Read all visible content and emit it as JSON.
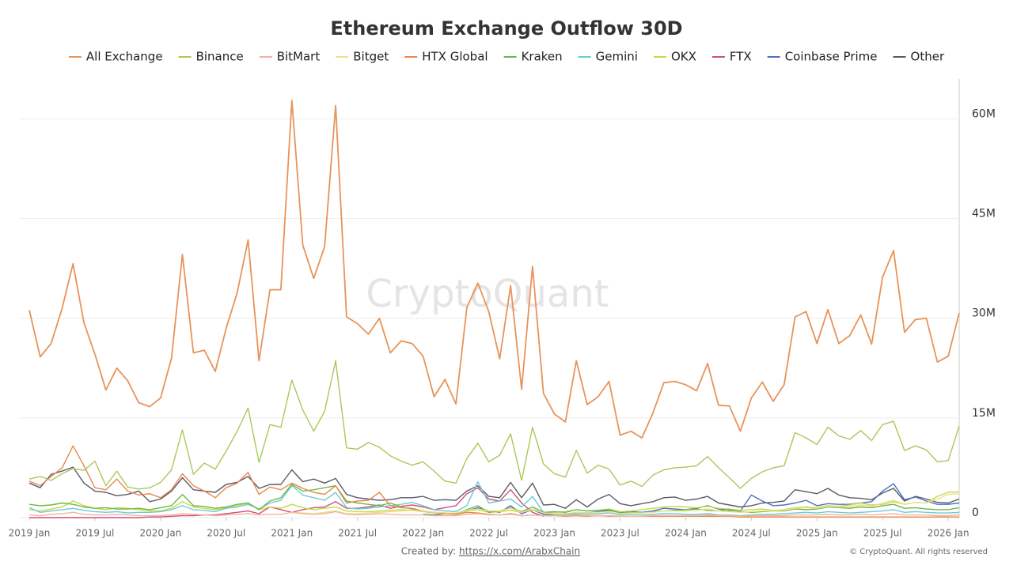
{
  "chart_data": {
    "type": "line",
    "title": "Ethereum Exchange Outflow 30D",
    "watermark": "CryptoQuant",
    "credit_label": "Created by:",
    "credit_link": "https://x.com/ArabxChain",
    "copyright": "© CryptoQuant. All rights reserved",
    "categories": [
      "2019 Jan",
      null,
      null,
      null,
      null,
      null,
      "2019 Jul",
      null,
      null,
      null,
      null,
      null,
      "2020 Jan",
      null,
      null,
      null,
      null,
      null,
      "2020 Jul",
      null,
      null,
      null,
      null,
      null,
      "2021 Jan",
      null,
      null,
      null,
      null,
      null,
      "2021 Jul",
      null,
      null,
      null,
      null,
      null,
      "2022 Jan",
      null,
      null,
      null,
      null,
      null,
      "2022 Jul",
      null,
      null,
      null,
      null,
      null,
      "2023 Jan",
      null,
      null,
      null,
      null,
      null,
      "2023 Jul",
      null,
      null,
      null,
      null,
      null,
      "2024 Jan",
      null,
      null,
      null,
      null,
      null,
      "2024 Jul",
      null,
      null,
      null,
      null,
      null,
      "2025 Jan",
      null,
      null,
      null,
      null,
      null,
      "2025 Jul",
      null,
      null,
      null,
      null,
      null,
      "2026 Jan",
      null
    ],
    "ylim": [
      0,
      66
    ],
    "yticks": [
      0,
      {
        "value": 15,
        "label": "15M"
      },
      {
        "value": 30,
        "label": "30M"
      },
      {
        "value": 45,
        "label": "45M"
      },
      {
        "value": 60,
        "label": "60M"
      }
    ],
    "grid": true,
    "legend": "top",
    "series": [
      {
        "name": "All Exchange",
        "color": "#e8935a",
        "values": [
          31.2,
          24.2,
          26.2,
          31.5,
          38.2,
          29.3,
          24.6,
          19.2,
          22.5,
          20.6,
          17.3,
          16.7,
          18.0,
          24.0,
          39.6,
          24.8,
          25.2,
          22.0,
          28.5,
          33.8,
          41.8,
          23.6,
          34.3,
          34.3,
          62.8,
          41.0,
          36.0,
          40.8,
          62.0,
          30.2,
          29.2,
          27.6,
          30.0,
          24.8,
          26.6,
          26.2,
          24.3,
          18.2,
          20.8,
          17.1,
          31.6,
          35.3,
          31.0,
          23.9,
          34.9,
          19.3,
          37.8,
          18.7,
          15.6,
          14.4,
          23.6,
          17.0,
          18.2,
          20.5,
          12.4,
          13.0,
          12.0,
          15.7,
          20.3,
          20.5,
          20.0,
          19.1,
          23.2,
          16.9,
          16.8,
          13.0,
          18.0,
          20.4,
          17.5,
          20.0,
          30.2,
          31.0,
          26.2,
          31.3,
          26.2,
          27.4,
          30.5,
          26.1,
          36.2,
          40.2,
          27.9,
          29.8,
          30.0,
          23.4,
          24.3,
          30.8
        ]
      },
      {
        "name": "Binance",
        "color": "#a8c95a",
        "values": [
          5.8,
          6.2,
          5.6,
          6.6,
          7.4,
          7.1,
          8.5,
          4.8,
          7.0,
          4.6,
          4.3,
          4.5,
          5.3,
          7.2,
          13.2,
          6.5,
          8.2,
          7.3,
          10.0,
          13.0,
          16.5,
          8.3,
          14.0,
          13.6,
          20.7,
          16.2,
          13.0,
          16.0,
          23.6,
          10.5,
          10.3,
          11.3,
          10.6,
          9.3,
          8.5,
          7.9,
          8.4,
          7.0,
          5.5,
          5.2,
          8.9,
          11.2,
          8.4,
          9.4,
          12.6,
          5.6,
          13.6,
          8.1,
          6.6,
          6.1,
          10.1,
          6.7,
          7.9,
          7.3,
          4.9,
          5.5,
          4.7,
          6.4,
          7.2,
          7.5,
          7.6,
          7.8,
          9.2,
          7.5,
          6.0,
          4.4,
          5.9,
          6.9,
          7.5,
          7.8,
          12.8,
          12.0,
          11.0,
          13.6,
          12.3,
          11.8,
          13.1,
          11.6,
          14.0,
          14.5,
          10.1,
          10.8,
          10.2,
          8.4,
          8.6,
          13.8
        ]
      },
      {
        "name": "BitMart",
        "color": "#f4b49a",
        "values": [
          0.4,
          0.3,
          0.5,
          0.6,
          0.8,
          0.5,
          0.4,
          0.4,
          0.5,
          0.4,
          0.3,
          0.3,
          0.3,
          0.4,
          0.6,
          0.5,
          0.4,
          0.3,
          0.4,
          0.5,
          0.6,
          0.4,
          0.5,
          0.5,
          0.8,
          0.6,
          0.5,
          0.6,
          0.9,
          0.5,
          0.4,
          0.5,
          0.6,
          0.5,
          0.4,
          0.4,
          0.4,
          0.3,
          0.3,
          0.3,
          0.5,
          0.6,
          0.4,
          0.4,
          0.5,
          0.3,
          0.4,
          0.3,
          0.3,
          0.3,
          0.4,
          0.3,
          0.3,
          0.3,
          0.2,
          0.2,
          0.2,
          0.3,
          0.3,
          0.3,
          0.3,
          0.3,
          0.4,
          0.3,
          0.3,
          0.2,
          0.3,
          0.3,
          0.3,
          0.3,
          0.4,
          0.4,
          0.4,
          0.5,
          0.4,
          0.4,
          0.5,
          0.4,
          0.5,
          0.6,
          0.4,
          0.4,
          0.4,
          0.3,
          0.3,
          0.4
        ]
      },
      {
        "name": "Bitget",
        "color": "#ecdf8c",
        "values": [
          null,
          null,
          null,
          null,
          null,
          null,
          null,
          null,
          null,
          null,
          null,
          null,
          null,
          null,
          null,
          null,
          null,
          null,
          null,
          null,
          null,
          null,
          null,
          null,
          0.8,
          0.7,
          0.6,
          0.8,
          1.0,
          0.6,
          0.6,
          0.7,
          0.8,
          0.9,
          1.0,
          1.1,
          1.0,
          0.8,
          0.7,
          0.7,
          1.1,
          1.3,
          1.0,
          1.0,
          1.4,
          0.8,
          1.3,
          0.7,
          0.6,
          0.6,
          0.8,
          0.7,
          0.8,
          0.9,
          0.6,
          0.7,
          0.7,
          0.8,
          1.0,
          1.0,
          1.0,
          1.1,
          1.3,
          1.0,
          0.9,
          0.8,
          0.9,
          1.0,
          1.0,
          1.1,
          1.4,
          1.5,
          1.4,
          1.7,
          1.6,
          1.6,
          1.9,
          1.7,
          2.2,
          2.6,
          2.0,
          2.3,
          2.2,
          2.8,
          3.5,
          3.6
        ]
      },
      {
        "name": "HTX Global",
        "color": "#e8884a",
        "values": [
          5.5,
          4.8,
          6.2,
          7.5,
          10.8,
          7.8,
          4.5,
          4.2,
          5.8,
          4.0,
          3.4,
          3.6,
          3.0,
          4.2,
          6.6,
          4.8,
          4.0,
          3.0,
          4.5,
          5.2,
          6.8,
          3.5,
          4.6,
          4.2,
          5.2,
          4.4,
          3.8,
          3.5,
          4.8,
          2.2,
          2.5,
          2.6,
          3.8,
          1.8,
          1.5,
          1.4,
          1.0,
          0.8,
          0.6,
          0.5,
          0.8,
          0.7,
          0.5,
          0.4,
          0.6,
          0.3,
          0.4,
          0.3,
          0.3,
          0.2,
          0.3,
          0.2,
          0.3,
          0.2,
          0.2,
          0.2,
          0.2,
          0.2,
          0.2,
          0.2,
          0.2,
          0.2,
          0.2,
          0.2,
          0.2,
          0.1,
          0.1,
          0.1,
          0.1,
          0.1,
          0.1,
          0.1,
          0.1,
          0.1,
          0.1,
          0.1,
          0.1,
          0.1,
          0.1,
          0.1,
          0.1,
          0.1,
          0.1,
          0.1,
          0.1,
          0.1
        ]
      },
      {
        "name": "Kraken",
        "color": "#6cb84a",
        "values": [
          2.0,
          1.8,
          1.9,
          2.2,
          2.0,
          1.6,
          1.4,
          1.5,
          1.3,
          1.3,
          1.4,
          1.2,
          1.5,
          1.8,
          3.5,
          1.8,
          1.7,
          1.4,
          1.6,
          2.0,
          2.2,
          1.2,
          2.5,
          3.0,
          5.0,
          4.0,
          4.2,
          4.5,
          4.8,
          2.5,
          2.2,
          2.0,
          1.8,
          2.2,
          1.6,
          1.3,
          1.0,
          0.8,
          0.7,
          0.6,
          1.2,
          1.8,
          0.8,
          1.0,
          1.5,
          0.9,
          1.6,
          0.8,
          0.9,
          0.8,
          1.2,
          1.0,
          1.1,
          1.2,
          0.7,
          0.8,
          0.7,
          0.9,
          1.0,
          1.1,
          1.2,
          1.3,
          1.1,
          1.0,
          1.2,
          0.9,
          0.8,
          0.9,
          1.0,
          1.0,
          1.3,
          1.2,
          1.3,
          1.6,
          1.5,
          1.4,
          1.6,
          1.5,
          1.8,
          2.0,
          1.4,
          1.5,
          1.3,
          1.2,
          1.2,
          1.5
        ]
      },
      {
        "name": "Gemini",
        "color": "#6ccbd6",
        "values": [
          1.5,
          0.8,
          1.0,
          1.2,
          1.4,
          1.1,
          0.9,
          0.8,
          0.9,
          0.7,
          0.8,
          0.8,
          0.9,
          1.2,
          1.8,
          1.2,
          1.1,
          0.9,
          1.4,
          1.6,
          2.0,
          1.3,
          2.2,
          2.6,
          4.8,
          3.4,
          3.0,
          2.6,
          3.8,
          1.5,
          1.3,
          1.4,
          1.6,
          1.8,
          2.0,
          2.3,
          1.8,
          1.2,
          1.0,
          0.9,
          1.8,
          5.4,
          2.2,
          2.5,
          2.8,
          1.6,
          3.2,
          0.8,
          0.5,
          0.4,
          0.6,
          0.5,
          0.6,
          0.7,
          0.4,
          0.5,
          0.4,
          0.5,
          0.6,
          0.6,
          0.5,
          0.5,
          0.6,
          0.4,
          0.4,
          0.3,
          0.4,
          0.5,
          0.5,
          0.6,
          0.7,
          0.8,
          0.7,
          0.9,
          0.8,
          0.7,
          0.8,
          0.9,
          1.0,
          1.2,
          0.8,
          0.9,
          0.8,
          0.7,
          0.7,
          0.8
        ]
      },
      {
        "name": "OKX",
        "color": "#c8d84a",
        "values": [
          1.2,
          1.0,
          1.3,
          1.6,
          2.5,
          1.8,
          1.4,
          1.2,
          1.5,
          1.4,
          1.2,
          1.0,
          1.0,
          1.4,
          2.4,
          1.6,
          1.4,
          1.2,
          1.5,
          1.8,
          2.2,
          1.2,
          1.6,
          1.4,
          2.0,
          1.5,
          1.2,
          1.4,
          1.6,
          1.0,
          0.9,
          0.9,
          1.0,
          1.1,
          1.2,
          1.1,
          0.9,
          0.7,
          0.6,
          0.6,
          1.0,
          1.2,
          0.8,
          0.9,
          1.1,
          0.8,
          1.2,
          0.7,
          0.8,
          0.9,
          1.2,
          1.0,
          1.1,
          1.3,
          0.9,
          1.0,
          1.2,
          1.4,
          1.6,
          1.7,
          1.6,
          1.5,
          1.7,
          1.4,
          1.3,
          1.1,
          1.2,
          1.3,
          1.1,
          1.2,
          1.5,
          1.6,
          1.5,
          1.8,
          1.7,
          1.9,
          2.2,
          1.9,
          2.0,
          2.4,
          2.0,
          2.3,
          2.2,
          3.2,
          3.8,
          3.9
        ]
      },
      {
        "name": "FTX",
        "color": "#d0507a",
        "values": [
          0,
          0,
          0,
          0,
          0,
          0,
          0,
          0,
          0,
          0,
          0,
          0.1,
          0.1,
          0.2,
          0.3,
          0.3,
          0.4,
          0.4,
          0.6,
          0.8,
          1.0,
          0.6,
          1.6,
          1.2,
          0.8,
          1.2,
          1.5,
          1.6,
          2.4,
          1.4,
          1.4,
          1.6,
          1.9,
          1.4,
          1.7,
          1.9,
          1.6,
          1.2,
          1.5,
          1.8,
          3.6,
          4.5,
          2.8,
          2.5,
          4.2,
          2.2,
          0.8,
          0.2,
          null,
          null,
          null,
          null,
          null,
          null,
          null,
          null,
          null,
          null,
          null,
          null,
          null,
          null,
          null,
          null,
          null,
          null,
          null,
          null,
          null,
          null,
          null,
          null,
          null,
          null,
          null,
          null,
          null,
          null,
          null,
          null,
          null,
          null,
          null,
          null,
          null,
          null
        ]
      },
      {
        "name": "Coinbase Prime",
        "color": "#4a72c0",
        "values": [
          null,
          null,
          null,
          null,
          null,
          null,
          null,
          null,
          null,
          null,
          null,
          null,
          null,
          null,
          null,
          null,
          null,
          null,
          null,
          null,
          null,
          null,
          null,
          null,
          null,
          null,
          null,
          null,
          null,
          null,
          null,
          null,
          null,
          null,
          null,
          null,
          0.5,
          0.4,
          0.6,
          0.6,
          1.0,
          1.5,
          1.0,
          0.8,
          1.8,
          0.6,
          1.2,
          0.5,
          0.4,
          0.5,
          0.8,
          0.7,
          0.9,
          1.1,
          0.8,
          0.9,
          0.8,
          1.0,
          1.4,
          1.3,
          1.2,
          1.4,
          1.8,
          1.3,
          1.1,
          1.0,
          3.4,
          2.5,
          1.8,
          1.9,
          2.2,
          2.6,
          1.8,
          2.1,
          2.0,
          2.0,
          2.2,
          2.4,
          4.0,
          5.1,
          2.7,
          3.1,
          2.5,
          2.0,
          2.0,
          2.2
        ]
      },
      {
        "name": "Other",
        "color": "#5a5a6a",
        "values": [
          5.2,
          4.5,
          6.5,
          7.0,
          7.6,
          5.2,
          4.0,
          3.8,
          3.3,
          3.5,
          4.0,
          2.4,
          2.8,
          4.0,
          6.0,
          4.2,
          4.0,
          3.8,
          5.0,
          5.3,
          6.2,
          4.4,
          5.0,
          5.0,
          7.2,
          5.4,
          5.8,
          5.2,
          5.9,
          3.5,
          3.0,
          2.8,
          2.6,
          2.7,
          3.0,
          3.0,
          3.2,
          2.6,
          2.7,
          2.6,
          4.0,
          4.8,
          3.2,
          3.0,
          5.3,
          3.0,
          5.2,
          1.9,
          2.0,
          1.4,
          2.7,
          1.6,
          2.8,
          3.5,
          2.1,
          1.8,
          2.1,
          2.4,
          3.0,
          3.1,
          2.6,
          2.8,
          3.2,
          2.2,
          1.9,
          1.6,
          1.8,
          2.2,
          2.3,
          2.5,
          4.2,
          3.9,
          3.6,
          4.4,
          3.4,
          3.0,
          2.9,
          2.7,
          3.7,
          4.4,
          2.5,
          3.2,
          2.8,
          2.3,
          2.2,
          2.8
        ]
      }
    ]
  }
}
